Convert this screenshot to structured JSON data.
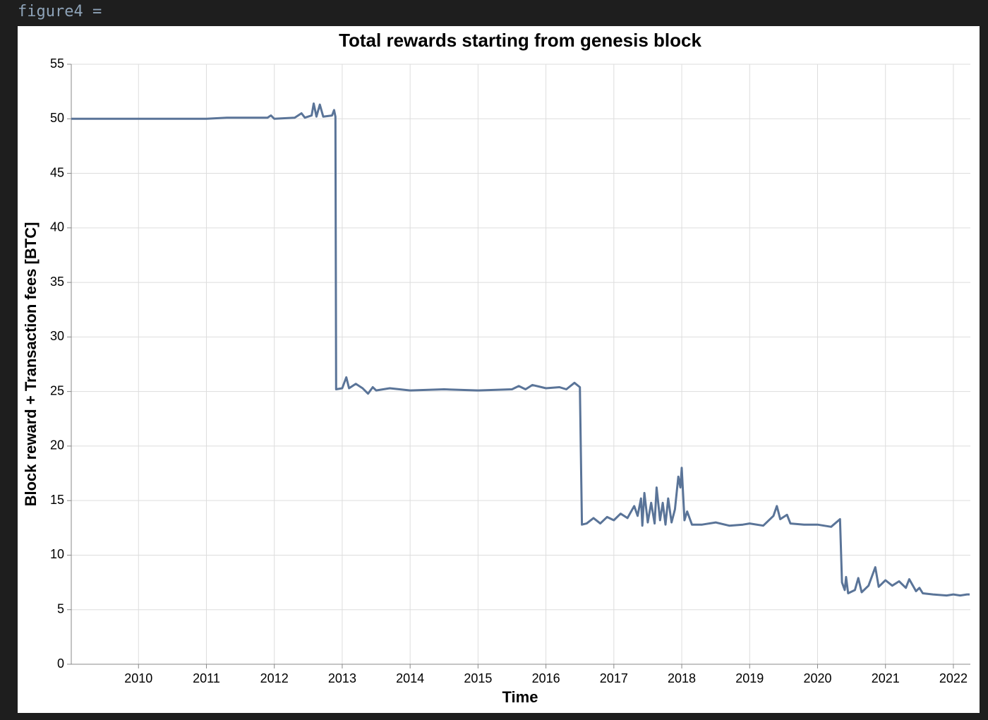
{
  "header": {
    "label": "figure4 ="
  },
  "chart_data": {
    "type": "line",
    "title": "Total rewards starting from genesis block",
    "x_label": "Time",
    "y_label": "Block reward + Transaction fees [BTC]",
    "x": [
      2009.01,
      2011.0,
      2011.3,
      2011.9,
      2011.95,
      2012.0,
      2012.3,
      2012.4,
      2012.45,
      2012.55,
      2012.58,
      2012.62,
      2012.67,
      2012.72,
      2012.85,
      2012.88,
      2012.9,
      2012.91,
      2013.0,
      2013.06,
      2013.1,
      2013.2,
      2013.3,
      2013.38,
      2013.45,
      2013.5,
      2013.7,
      2014.0,
      2014.5,
      2015.0,
      2015.5,
      2015.6,
      2015.7,
      2015.8,
      2016.0,
      2016.2,
      2016.3,
      2016.42,
      2016.5,
      2016.53,
      2016.6,
      2016.7,
      2016.8,
      2016.9,
      2017.0,
      2017.1,
      2017.2,
      2017.3,
      2017.35,
      2017.4,
      2017.42,
      2017.45,
      2017.5,
      2017.55,
      2017.6,
      2017.63,
      2017.68,
      2017.72,
      2017.76,
      2017.8,
      2017.85,
      2017.9,
      2017.95,
      2017.98,
      2018.0,
      2018.04,
      2018.08,
      2018.15,
      2018.3,
      2018.5,
      2018.7,
      2018.9,
      2019.0,
      2019.2,
      2019.35,
      2019.4,
      2019.45,
      2019.55,
      2019.6,
      2019.8,
      2020.0,
      2020.2,
      2020.33,
      2020.36,
      2020.4,
      2020.42,
      2020.45,
      2020.55,
      2020.6,
      2020.65,
      2020.75,
      2020.85,
      2020.9,
      2021.0,
      2021.1,
      2021.2,
      2021.3,
      2021.35,
      2021.45,
      2021.5,
      2021.55,
      2021.7,
      2021.9,
      2022.0,
      2022.1,
      2022.2,
      2022.24
    ],
    "series": [
      {
        "color": "#5a7498",
        "values": [
          50,
          50,
          50.1,
          50.1,
          50.3,
          50.0,
          50.1,
          50.5,
          50.1,
          50.3,
          51.4,
          50.2,
          51.3,
          50.2,
          50.3,
          50.8,
          50.2,
          25.2,
          25.3,
          26.3,
          25.3,
          25.7,
          25.3,
          24.8,
          25.4,
          25.1,
          25.3,
          25.1,
          25.2,
          25.1,
          25.2,
          25.5,
          25.2,
          25.6,
          25.3,
          25.4,
          25.2,
          25.8,
          25.4,
          12.8,
          12.9,
          13.4,
          12.9,
          13.5,
          13.2,
          13.8,
          13.4,
          14.5,
          13.6,
          15.2,
          12.7,
          15.7,
          13.0,
          14.8,
          12.9,
          16.2,
          13.2,
          14.8,
          12.8,
          15.2,
          13.0,
          14.2,
          17.2,
          16.2,
          18.0,
          13.2,
          14.0,
          12.8,
          12.8,
          13.0,
          12.7,
          12.8,
          12.9,
          12.7,
          13.6,
          14.5,
          13.3,
          13.7,
          12.9,
          12.8,
          12.8,
          12.6,
          13.3,
          7.5,
          6.8,
          8.0,
          6.5,
          6.8,
          7.9,
          6.6,
          7.2,
          8.9,
          7.1,
          7.7,
          7.2,
          7.6,
          7.0,
          7.8,
          6.7,
          7.0,
          6.5,
          6.4,
          6.3,
          6.4,
          6.3,
          6.4,
          6.4
        ]
      }
    ],
    "xlim": [
      2009.01,
      2022.25
    ],
    "xticks": [
      2010,
      2011,
      2012,
      2013,
      2014,
      2015,
      2016,
      2017,
      2018,
      2019,
      2020,
      2021,
      2022
    ],
    "ylim": [
      0,
      55
    ],
    "yticks": [
      0,
      5,
      10,
      15,
      20,
      25,
      30,
      35,
      40,
      45,
      50,
      55
    ],
    "grid": true
  }
}
